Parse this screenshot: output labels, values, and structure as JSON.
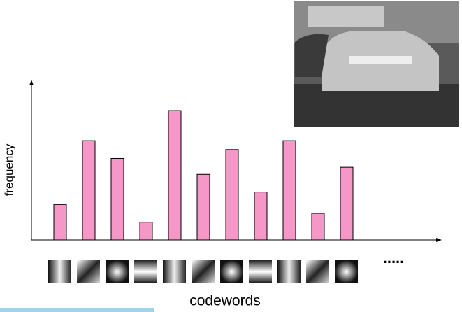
{
  "chart_data": {
    "type": "bar",
    "ylabel": "frequency",
    "xlabel": "codewords",
    "annotation": ".....",
    "categories": [
      null,
      null,
      null,
      null,
      null,
      null,
      null,
      null,
      null,
      null,
      null
    ],
    "values": [
      2,
      5.6,
      4.6,
      1,
      7.3,
      3.7,
      5.1,
      2.7,
      5.6,
      1.5,
      4.1
    ],
    "color": "#f598c8",
    "ylim": [
      0,
      9
    ]
  }
}
